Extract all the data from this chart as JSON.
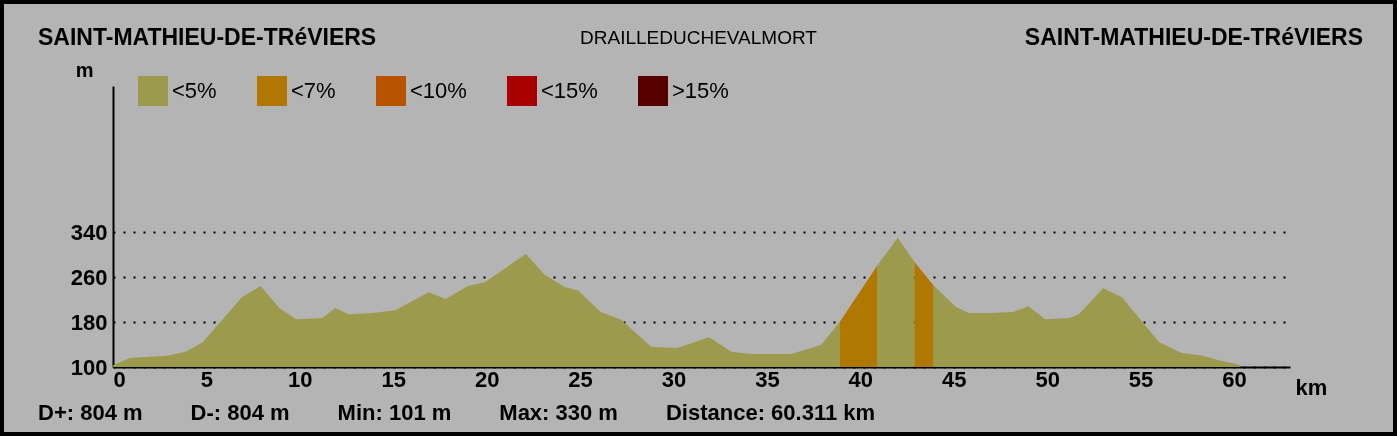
{
  "chart_data": {
    "type": "area",
    "xlabel": "km",
    "ylabel": "m",
    "annotations": [
      "SAINT-MATHIEU-DE-TRéVIERS",
      "DRAILLEDUCHEVALMORT",
      "SAINT-MATHIEU-DE-TRéVIERS",
      "D+: 804 m",
      "D-: 804 m",
      "Min: 101 m",
      "Max: 330 m",
      "Distance: 60.311 km"
    ],
    "series": [
      {
        "name": "<5%",
        "color": "#9c9a4c",
        "x": [
          0,
          0.9,
          2.9,
          3.9,
          4.8,
          6.9,
          7.9,
          8.9,
          9.8,
          11.2,
          11.9,
          12.6,
          13.9,
          15.1,
          16.9,
          17.8,
          19.0,
          19.9,
          22.1,
          23.1,
          24.2,
          24.9,
          26.1,
          27.2,
          28.8,
          30.2,
          31.9,
          33.1,
          34.1,
          36.3,
          37.9,
          38.9,
          39.5,
          40.9,
          42.0,
          42.9,
          43.4,
          43.9,
          45.1,
          45.8,
          46.9,
          48.2,
          49.0,
          49.9,
          51.2,
          51.7,
          53.0,
          54.0,
          55.6,
          56.0,
          57.2,
          58.2,
          59.2,
          60.3
        ],
        "values": [
          103,
          116,
          120,
          127,
          144,
          224,
          244,
          205,
          185,
          187,
          205,
          194,
          196,
          201,
          233,
          221,
          244,
          251,
          301,
          264,
          242,
          236,
          198,
          184,
          136,
          134,
          153,
          127,
          123,
          123,
          139,
          180,
          null,
          280,
          330,
          287,
          null,
          246,
          207,
          196,
          196,
          198,
          208,
          185,
          187,
          194,
          240,
          224,
          160,
          144,
          125,
          121,
          112,
          104
        ]
      },
      {
        "name": "<7%",
        "color": "#b07800",
        "x": [
          38.9,
          40.9,
          42.0,
          42.9,
          43.9
        ],
        "values": [
          180,
          280,
          null,
          287,
          246
        ]
      },
      {
        "name": "<10%",
        "color": "#b85400"
      },
      {
        "name": "<15%",
        "color": "#a80000"
      },
      {
        "name": ">15%",
        "color": "#580000"
      }
    ],
    "xlim": [
      0,
      63
    ],
    "xticks": [
      0,
      5,
      10,
      15,
      20,
      25,
      30,
      35,
      40,
      45,
      50,
      55,
      60
    ],
    "ylim": [
      100,
      600
    ],
    "yticks": [
      100,
      180,
      260,
      340
    ],
    "grid": "y",
    "legend": "top left"
  }
}
